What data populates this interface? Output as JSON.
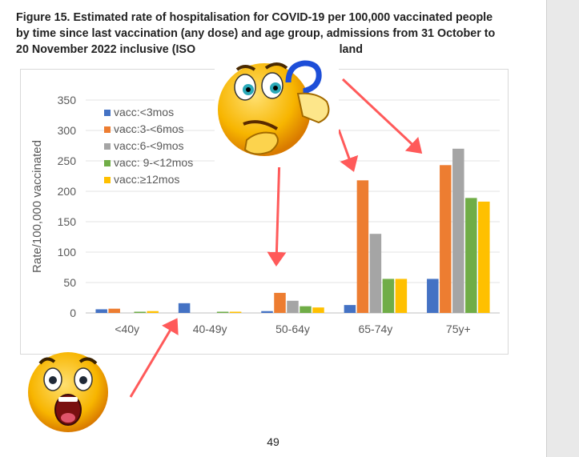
{
  "figure": {
    "title_lines": [
      "Figure 15. Estimated rate of hospitalisation for COVID-19 per 100,000 vaccinated people",
      "by time since last vaccination (any dose) and age group, admissions from 31 October to",
      "20 November 2022 inclusive (ISO",
      "ngland"
    ]
  },
  "chart_data": {
    "type": "bar",
    "ylabel": "Rate/100,000 vaccinated",
    "xlabel": "",
    "ylim": [
      0,
      350
    ],
    "yticks": [
      0,
      50,
      100,
      150,
      200,
      250,
      300,
      350
    ],
    "grid": true,
    "legend_position": "top-left",
    "categories": [
      "<40y",
      "40-49y",
      "50-64y",
      "65-74y",
      "75y+"
    ],
    "series": [
      {
        "name": "vacc:<3mos",
        "color": "#4472c4",
        "values": [
          6,
          16,
          3,
          13,
          56
        ]
      },
      {
        "name": "vacc:3-<6mos",
        "color": "#ed7d31",
        "values": [
          7,
          0,
          33,
          218,
          243
        ]
      },
      {
        "name": "vacc:6-<9mos",
        "color": "#a5a5a5",
        "values": [
          0,
          0,
          20,
          130,
          270
        ]
      },
      {
        "name": "vacc: 9-<12mos",
        "color": "#70ad47",
        "values": [
          2,
          2,
          11,
          56,
          189
        ]
      },
      {
        "name": "vacc:≥12mos",
        "color": "#ffc000",
        "values": [
          3,
          2,
          9,
          56,
          183
        ]
      }
    ]
  },
  "annotation_color": "#ff5a5a",
  "page": {
    "number": "49"
  },
  "icons": [
    "thinking-face-icon",
    "shocked-face-icon"
  ]
}
